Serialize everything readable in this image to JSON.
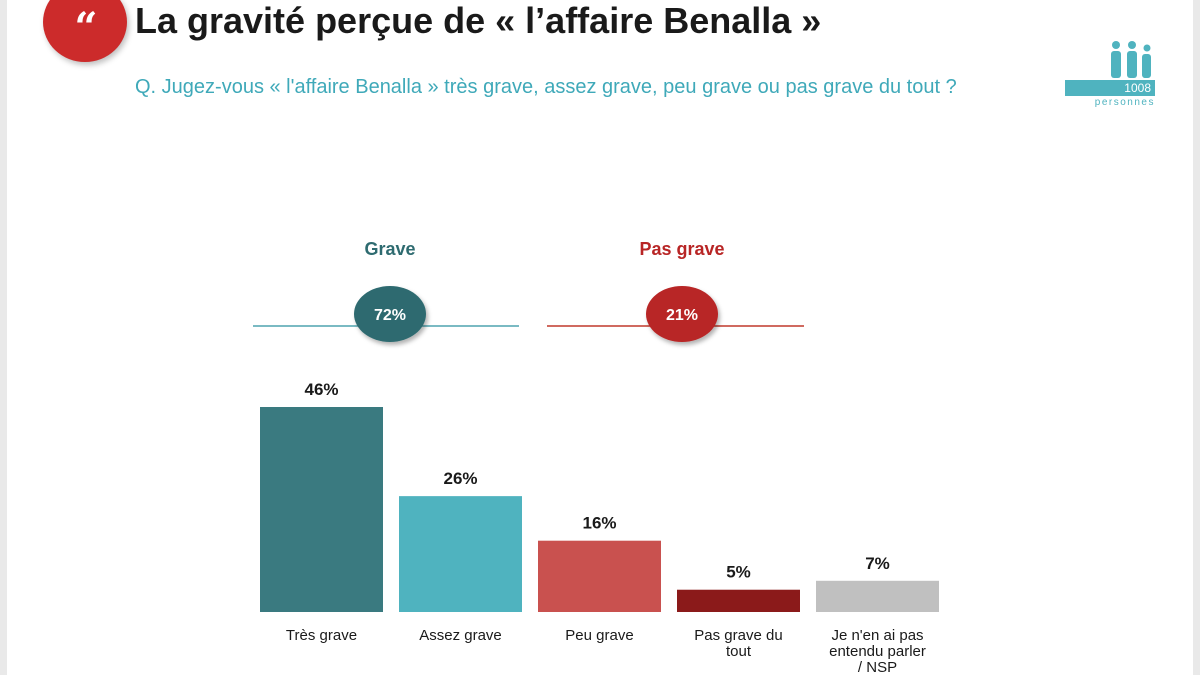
{
  "header": {
    "quote_glyph": "“",
    "title": "La gravité perçue de « l’affaire Benalla »",
    "subtitle": "Q. Jugez-vous « l'affaire Benalla » très grave, assez grave, peu grave ou pas grave du tout ?"
  },
  "sample": {
    "count": "1008",
    "label": "personnes",
    "icon": "people-group-icon"
  },
  "groups": [
    {
      "label": "Grave",
      "value": 72,
      "value_label": "72%",
      "color": "#2e6b70",
      "line_color": "#4fa3af"
    },
    {
      "label": "Pas grave",
      "value": 21,
      "value_label": "21%",
      "color": "#b82525",
      "line_color": "#c0392b"
    }
  ],
  "chart_data": {
    "type": "bar",
    "categories": [
      "Très grave",
      "Assez grave",
      "Peu grave",
      "Pas grave du tout",
      "Je n'en ai pas entendu parler / NSP"
    ],
    "category_lines": [
      [
        "Très grave"
      ],
      [
        "Assez grave"
      ],
      [
        "Peu grave"
      ],
      [
        "Pas grave du",
        "tout"
      ],
      [
        "Je n'en ai pas",
        "entendu parler",
        "/ NSP"
      ]
    ],
    "values": [
      46,
      26,
      16,
      5,
      7
    ],
    "value_labels": [
      "46%",
      "26%",
      "16%",
      "5%",
      "7%"
    ],
    "colors": [
      "#3a7a80",
      "#4fb3bf",
      "#c9514f",
      "#8b1a1a",
      "#c0c0c0"
    ],
    "title": "",
    "xlabel": "",
    "ylabel": "",
    "ylim": [
      0,
      50
    ],
    "grid": false,
    "legend": "none"
  }
}
